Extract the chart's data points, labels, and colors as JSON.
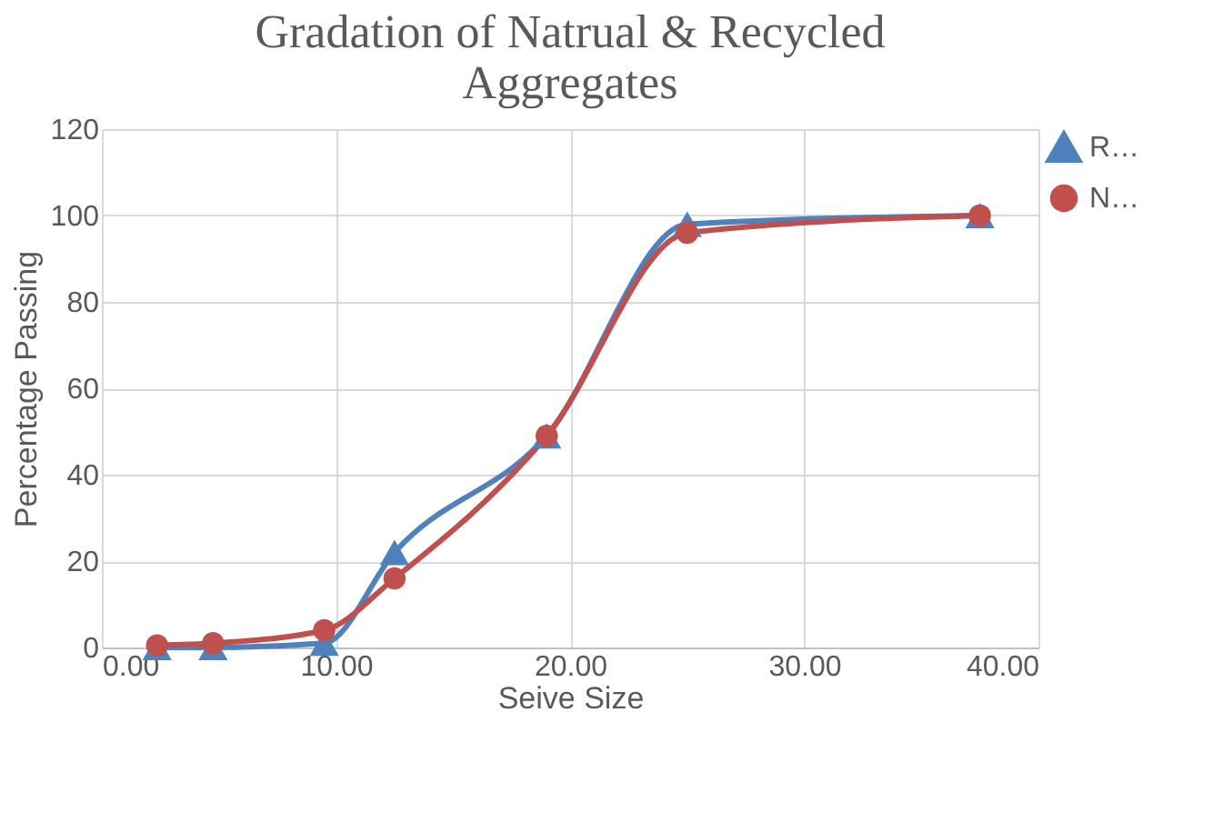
{
  "chart_data": {
    "type": "line",
    "title": "Gradation of Natrual & Recycled Aggregates",
    "xlabel": "Seive Size",
    "ylabel": "Percentage Passing",
    "x": [
      2.36,
      4.75,
      9.5,
      12.5,
      19,
      25,
      37.5
    ],
    "series": [
      {
        "name": "R…",
        "color": "#4f81bd",
        "marker": "triangle",
        "values": [
          0,
          0,
          1,
          22,
          49,
          98,
          100
        ]
      },
      {
        "name": "N…",
        "color": "#c0504d",
        "marker": "circle",
        "values": [
          0.5,
          1,
          4,
          16,
          49,
          96,
          100
        ]
      }
    ],
    "xlim": [
      0,
      40
    ],
    "xticks": [
      {
        "value": 0,
        "label": "0.00"
      },
      {
        "value": 10,
        "label": "10.00"
      },
      {
        "value": 20,
        "label": "20.00"
      },
      {
        "value": 30,
        "label": "30.00"
      },
      {
        "value": 40,
        "label": "40.00"
      }
    ],
    "ylim": [
      0,
      120
    ],
    "yticks": [
      0,
      20,
      40,
      60,
      80,
      100,
      120
    ],
    "grid": true,
    "legend": "right",
    "line_style": "solid"
  }
}
